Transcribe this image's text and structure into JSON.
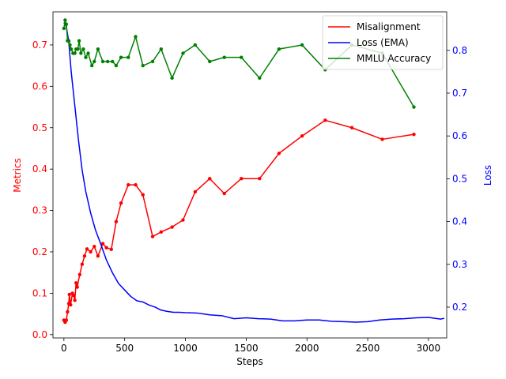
{
  "chart_data": {
    "type": "line",
    "title": "",
    "xlabel": "Steps",
    "ylabel_left": "Metrics",
    "ylabel_right": "Loss",
    "xlim": [
      -90,
      3150
    ],
    "ylim_left": [
      -0.008,
      0.78
    ],
    "ylim_right": [
      0.128,
      0.89
    ],
    "x_ticks": [
      0,
      500,
      1000,
      1500,
      2000,
      2500,
      3000
    ],
    "y_ticks_left": [
      0.0,
      0.1,
      0.2,
      0.3,
      0.4,
      0.5,
      0.6,
      0.7
    ],
    "y_ticks_right": [
      0.2,
      0.3,
      0.4,
      0.5,
      0.6,
      0.7,
      0.8
    ],
    "grid": false,
    "legend_position": "top-right",
    "series": [
      {
        "name": "Misalignment",
        "axis": "left",
        "color": "#ff0000",
        "markers": true,
        "points": [
          [
            0,
            0.035
          ],
          [
            10,
            0.03
          ],
          [
            20,
            0.035
          ],
          [
            30,
            0.055
          ],
          [
            40,
            0.075
          ],
          [
            45,
            0.097
          ],
          [
            55,
            0.072
          ],
          [
            70,
            0.1
          ],
          [
            80,
            0.095
          ],
          [
            90,
            0.083
          ],
          [
            100,
            0.125
          ],
          [
            110,
            0.115
          ],
          [
            130,
            0.145
          ],
          [
            150,
            0.17
          ],
          [
            170,
            0.19
          ],
          [
            190,
            0.207
          ],
          [
            220,
            0.2
          ],
          [
            250,
            0.213
          ],
          [
            280,
            0.19
          ],
          [
            320,
            0.22
          ],
          [
            350,
            0.21
          ],
          [
            390,
            0.206
          ],
          [
            430,
            0.273
          ],
          [
            470,
            0.318
          ],
          [
            530,
            0.362
          ],
          [
            590,
            0.362
          ],
          [
            650,
            0.338
          ],
          [
            730,
            0.237
          ],
          [
            800,
            0.248
          ],
          [
            890,
            0.26
          ],
          [
            980,
            0.277
          ],
          [
            1080,
            0.345
          ],
          [
            1200,
            0.377
          ],
          [
            1320,
            0.341
          ],
          [
            1460,
            0.377
          ],
          [
            1610,
            0.377
          ],
          [
            1770,
            0.438
          ],
          [
            1960,
            0.48
          ],
          [
            2150,
            0.518
          ],
          [
            2370,
            0.5
          ],
          [
            2620,
            0.472
          ],
          [
            2880,
            0.484
          ]
        ]
      },
      {
        "name": "Loss (EMA)",
        "axis": "right",
        "color": "#0000ff",
        "markers": false,
        "points": [
          [
            0,
            0.865
          ],
          [
            20,
            0.855
          ],
          [
            40,
            0.82
          ],
          [
            60,
            0.75
          ],
          [
            90,
            0.67
          ],
          [
            120,
            0.59
          ],
          [
            150,
            0.52
          ],
          [
            180,
            0.47
          ],
          [
            220,
            0.42
          ],
          [
            260,
            0.38
          ],
          [
            300,
            0.35
          ],
          [
            350,
            0.31
          ],
          [
            400,
            0.28
          ],
          [
            450,
            0.255
          ],
          [
            500,
            0.24
          ],
          [
            550,
            0.225
          ],
          [
            600,
            0.215
          ],
          [
            650,
            0.212
          ],
          [
            700,
            0.205
          ],
          [
            750,
            0.2
          ],
          [
            800,
            0.193
          ],
          [
            850,
            0.19
          ],
          [
            900,
            0.188
          ],
          [
            950,
            0.188
          ],
          [
            1000,
            0.187
          ],
          [
            1100,
            0.186
          ],
          [
            1200,
            0.182
          ],
          [
            1300,
            0.18
          ],
          [
            1400,
            0.173
          ],
          [
            1500,
            0.175
          ],
          [
            1600,
            0.173
          ],
          [
            1700,
            0.172
          ],
          [
            1800,
            0.168
          ],
          [
            1900,
            0.168
          ],
          [
            2000,
            0.17
          ],
          [
            2100,
            0.17
          ],
          [
            2200,
            0.167
          ],
          [
            2300,
            0.166
          ],
          [
            2400,
            0.165
          ],
          [
            2500,
            0.166
          ],
          [
            2600,
            0.17
          ],
          [
            2700,
            0.172
          ],
          [
            2800,
            0.173
          ],
          [
            2900,
            0.175
          ],
          [
            3000,
            0.176
          ],
          [
            3100,
            0.172
          ],
          [
            3130,
            0.174
          ]
        ]
      },
      {
        "name": "MMLU Accuracy",
        "axis": "left",
        "color": "#008000",
        "markers": true,
        "points": [
          [
            0,
            0.74
          ],
          [
            10,
            0.76
          ],
          [
            20,
            0.75
          ],
          [
            30,
            0.71
          ],
          [
            40,
            0.71
          ],
          [
            50,
            0.7
          ],
          [
            60,
            0.69
          ],
          [
            75,
            0.68
          ],
          [
            90,
            0.68
          ],
          [
            100,
            0.69
          ],
          [
            115,
            0.69
          ],
          [
            125,
            0.71
          ],
          [
            140,
            0.68
          ],
          [
            160,
            0.69
          ],
          [
            180,
            0.67
          ],
          [
            200,
            0.68
          ],
          [
            230,
            0.65
          ],
          [
            250,
            0.66
          ],
          [
            280,
            0.69
          ],
          [
            320,
            0.66
          ],
          [
            360,
            0.66
          ],
          [
            400,
            0.66
          ],
          [
            430,
            0.65
          ],
          [
            470,
            0.67
          ],
          [
            530,
            0.67
          ],
          [
            590,
            0.72
          ],
          [
            650,
            0.65
          ],
          [
            730,
            0.66
          ],
          [
            800,
            0.69
          ],
          [
            890,
            0.62
          ],
          [
            980,
            0.68
          ],
          [
            1080,
            0.7
          ],
          [
            1200,
            0.66
          ],
          [
            1320,
            0.67
          ],
          [
            1460,
            0.67
          ],
          [
            1610,
            0.62
          ],
          [
            1770,
            0.69
          ],
          [
            1960,
            0.7
          ],
          [
            2150,
            0.64
          ],
          [
            2370,
            0.7
          ],
          [
            2620,
            0.68
          ],
          [
            2880,
            0.55
          ]
        ]
      }
    ]
  }
}
